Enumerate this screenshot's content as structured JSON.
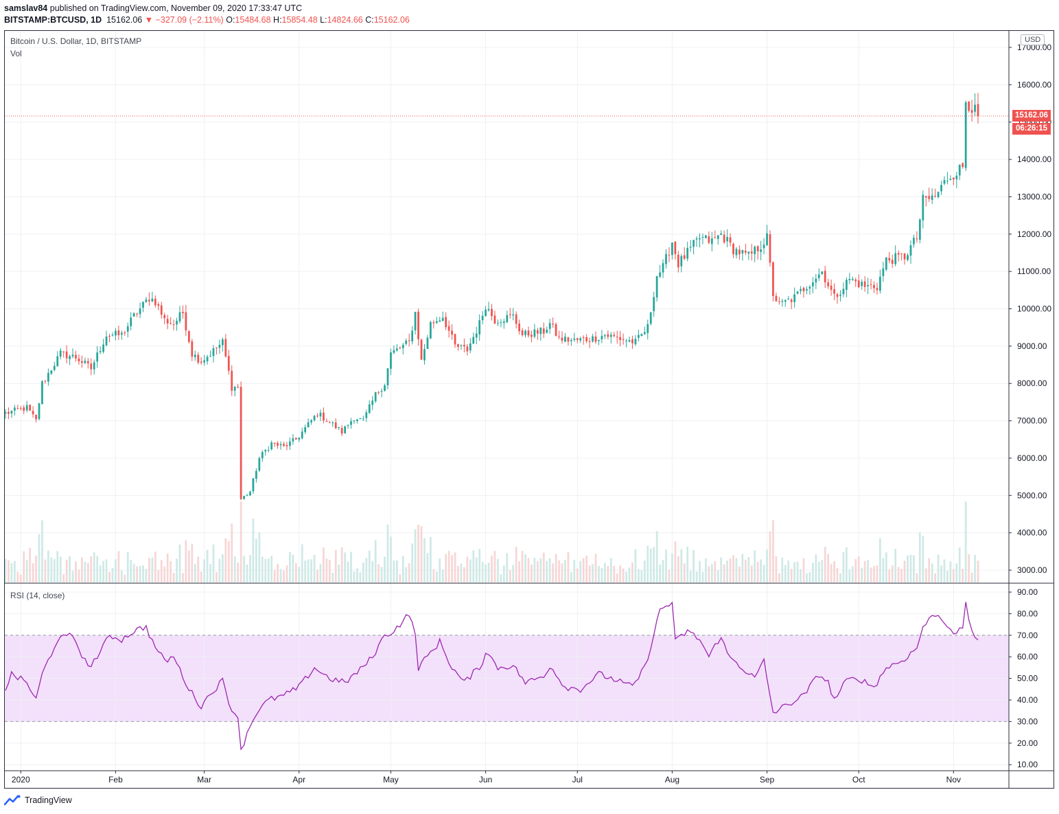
{
  "header": {
    "author": "samslav84",
    "published_text": "published on TradingView.com, November 09, 2020 17:33:47 UTC",
    "symbol": "BITSTAMP:BTCUSD, 1D",
    "last": "15162.06",
    "change": "−327.09 (−2.11%)",
    "o_label": "O:",
    "o_value": "15484.68",
    "h_label": "H:",
    "h_value": "15854.48",
    "l_label": "L:",
    "l_value": "14824.66",
    "c_label": "C:",
    "c_value": "15162.06"
  },
  "legend": {
    "main": "Bitcoin / U.S. Dollar, 1D, BITSTAMP",
    "vol": "Vol",
    "rsi": "RSI (14, close)"
  },
  "currency_button": "USD",
  "price_tag": "15162.06",
  "countdown_tag": "06:26:15",
  "footer": {
    "brand": "TradingView"
  },
  "colors": {
    "up": "#26a69a",
    "down": "#ef5350",
    "rsi_line": "#9c27b0",
    "rsi_band": "#f3e0fb",
    "grid": "#eef0f3",
    "vol_up": "#cfe9e6",
    "vol_down": "#f7d6d6"
  },
  "chart_data": [
    {
      "type": "candlestick",
      "title": "Bitcoin / U.S. Dollar, 1D, BITSTAMP",
      "interval": "1D",
      "ylim": [
        2700,
        17300
      ],
      "y_ticks": [
        "17000.00",
        "16000.00",
        "15000.00",
        "14000.00",
        "13000.00",
        "12000.00",
        "11000.00",
        "10000.00",
        "9000.00",
        "8000.00",
        "7000.00",
        "6000.00",
        "5000.00",
        "4000.00",
        "3000.00"
      ],
      "x_ticks": [
        "2020",
        "Feb",
        "Mar",
        "Apr",
        "May",
        "Jun",
        "Jul",
        "Aug",
        "Sep",
        "Oct",
        "Nov"
      ],
      "x_range": [
        "2019-12-27",
        "2020-11-09"
      ],
      "grid": true,
      "anchors": [
        [
          "2019-12-27",
          7200
        ],
        [
          "2020-01-03",
          7350
        ],
        [
          "2020-01-06",
          7000
        ],
        [
          "2020-01-08",
          8000
        ],
        [
          "2020-01-14",
          8800
        ],
        [
          "2020-01-19",
          8700
        ],
        [
          "2020-01-24",
          8400
        ],
        [
          "2020-01-29",
          9300
        ],
        [
          "2020-02-03",
          9300
        ],
        [
          "2020-02-07",
          9800
        ],
        [
          "2020-02-12",
          10300
        ],
        [
          "2020-02-14",
          10200
        ],
        [
          "2020-02-17",
          9700
        ],
        [
          "2020-02-20",
          9600
        ],
        [
          "2020-02-23",
          9900
        ],
        [
          "2020-02-26",
          8800
        ],
        [
          "2020-02-29",
          8600
        ],
        [
          "2020-03-03",
          8800
        ],
        [
          "2020-03-07",
          9100
        ],
        [
          "2020-03-10",
          7900
        ],
        [
          "2020-03-12",
          7900
        ],
        [
          "2020-03-13",
          4900
        ],
        [
          "2020-03-16",
          5100
        ],
        [
          "2020-03-19",
          6000
        ],
        [
          "2020-03-23",
          6400
        ],
        [
          "2020-03-27",
          6300
        ],
        [
          "2020-03-31",
          6500
        ],
        [
          "2020-04-03",
          6800
        ],
        [
          "2020-04-07",
          7200
        ],
        [
          "2020-04-12",
          6900
        ],
        [
          "2020-04-15",
          6700
        ],
        [
          "2020-04-19",
          7100
        ],
        [
          "2020-04-22",
          7000
        ],
        [
          "2020-04-26",
          7700
        ],
        [
          "2020-04-29",
          8000
        ],
        [
          "2020-05-01",
          8800
        ],
        [
          "2020-05-07",
          9100
        ],
        [
          "2020-05-09",
          9900
        ],
        [
          "2020-05-11",
          8600
        ],
        [
          "2020-05-14",
          9600
        ],
        [
          "2020-05-18",
          9800
        ],
        [
          "2020-05-22",
          9000
        ],
        [
          "2020-05-26",
          8900
        ],
        [
          "2020-05-30",
          9600
        ],
        [
          "2020-06-01",
          10100
        ],
        [
          "2020-06-04",
          9700
        ],
        [
          "2020-06-10",
          9800
        ],
        [
          "2020-06-13",
          9300
        ],
        [
          "2020-06-20",
          9400
        ],
        [
          "2020-06-22",
          9600
        ],
        [
          "2020-06-25",
          9200
        ],
        [
          "2020-06-30",
          9150
        ],
        [
          "2020-07-06",
          9200
        ],
        [
          "2020-07-10",
          9300
        ],
        [
          "2020-07-15",
          9200
        ],
        [
          "2020-07-20",
          9100
        ],
        [
          "2020-07-24",
          9500
        ],
        [
          "2020-07-27",
          10900
        ],
        [
          "2020-07-29",
          11100
        ],
        [
          "2020-08-01",
          11800
        ],
        [
          "2020-08-03",
          11200
        ],
        [
          "2020-08-10",
          11900
        ],
        [
          "2020-08-14",
          11800
        ],
        [
          "2020-08-17",
          12000
        ],
        [
          "2020-08-21",
          11600
        ],
        [
          "2020-08-26",
          11400
        ],
        [
          "2020-08-30",
          11700
        ],
        [
          "2020-09-01",
          11900
        ],
        [
          "2020-09-03",
          10400
        ],
        [
          "2020-09-05",
          10100
        ],
        [
          "2020-09-10",
          10300
        ],
        [
          "2020-09-15",
          10700
        ],
        [
          "2020-09-19",
          11000
        ],
        [
          "2020-09-23",
          10300
        ],
        [
          "2020-09-28",
          10800
        ],
        [
          "2020-10-03",
          10600
        ],
        [
          "2020-10-07",
          10600
        ],
        [
          "2020-10-10",
          11300
        ],
        [
          "2020-10-16",
          11400
        ],
        [
          "2020-10-20",
          11900
        ],
        [
          "2020-10-22",
          12900
        ],
        [
          "2020-10-26",
          13000
        ],
        [
          "2020-10-30",
          13500
        ],
        [
          "2020-11-04",
          13800
        ],
        [
          "2020-11-05",
          15600
        ],
        [
          "2020-11-07",
          15400
        ],
        [
          "2020-11-09",
          15162
        ]
      ],
      "last_price": 15162.06
    },
    {
      "type": "line",
      "title": "RSI (14, close)",
      "ylim": [
        10,
        90
      ],
      "y_ticks": [
        "90.00",
        "80.00",
        "70.00",
        "60.00",
        "50.00",
        "40.00",
        "30.00",
        "20.00",
        "10.00"
      ],
      "band": [
        30,
        70
      ],
      "x_range": [
        "2019-12-27",
        "2020-11-09"
      ],
      "anchors": [
        [
          "2019-12-27",
          45
        ],
        [
          "2019-12-29",
          52
        ],
        [
          "2020-01-03",
          48
        ],
        [
          "2020-01-06",
          40
        ],
        [
          "2020-01-08",
          52
        ],
        [
          "2020-01-13",
          68
        ],
        [
          "2020-01-18",
          70
        ],
        [
          "2020-01-23",
          55
        ],
        [
          "2020-01-27",
          62
        ],
        [
          "2020-01-30",
          70
        ],
        [
          "2020-02-03",
          68
        ],
        [
          "2020-02-07",
          72
        ],
        [
          "2020-02-11",
          74
        ],
        [
          "2020-02-13",
          67
        ],
        [
          "2020-02-17",
          58
        ],
        [
          "2020-02-20",
          60
        ],
        [
          "2020-02-25",
          45
        ],
        [
          "2020-02-29",
          37
        ],
        [
          "2020-03-03",
          43
        ],
        [
          "2020-03-07",
          49
        ],
        [
          "2020-03-10",
          35
        ],
        [
          "2020-03-12",
          33
        ],
        [
          "2020-03-13",
          16
        ],
        [
          "2020-03-15",
          25
        ],
        [
          "2020-03-18",
          34
        ],
        [
          "2020-03-22",
          40
        ],
        [
          "2020-03-27",
          42
        ],
        [
          "2020-04-01",
          46
        ],
        [
          "2020-04-06",
          55
        ],
        [
          "2020-04-11",
          50
        ],
        [
          "2020-04-16",
          48
        ],
        [
          "2020-04-21",
          54
        ],
        [
          "2020-04-25",
          60
        ],
        [
          "2020-04-29",
          70
        ],
        [
          "2020-05-02",
          72
        ],
        [
          "2020-05-07",
          80
        ],
        [
          "2020-05-09",
          70
        ],
        [
          "2020-05-10",
          55
        ],
        [
          "2020-05-14",
          62
        ],
        [
          "2020-05-17",
          67
        ],
        [
          "2020-05-21",
          55
        ],
        [
          "2020-05-25",
          48
        ],
        [
          "2020-05-31",
          57
        ],
        [
          "2020-06-01",
          63
        ],
        [
          "2020-06-05",
          55
        ],
        [
          "2020-06-10",
          56
        ],
        [
          "2020-06-14",
          48
        ],
        [
          "2020-06-20",
          51
        ],
        [
          "2020-06-22",
          56
        ],
        [
          "2020-06-27",
          46
        ],
        [
          "2020-07-02",
          45
        ],
        [
          "2020-07-08",
          52
        ],
        [
          "2020-07-14",
          49
        ],
        [
          "2020-07-19",
          46
        ],
        [
          "2020-07-23",
          55
        ],
        [
          "2020-07-26",
          70
        ],
        [
          "2020-07-28",
          82
        ],
        [
          "2020-08-01",
          85
        ],
        [
          "2020-08-02",
          67
        ],
        [
          "2020-08-06",
          72
        ],
        [
          "2020-08-10",
          68
        ],
        [
          "2020-08-13",
          60
        ],
        [
          "2020-08-17",
          70
        ],
        [
          "2020-08-19",
          61
        ],
        [
          "2020-08-23",
          56
        ],
        [
          "2020-08-28",
          50
        ],
        [
          "2020-08-31",
          58
        ],
        [
          "2020-09-03",
          34
        ],
        [
          "2020-09-08",
          38
        ],
        [
          "2020-09-13",
          42
        ],
        [
          "2020-09-18",
          52
        ],
        [
          "2020-09-21",
          48
        ],
        [
          "2020-09-23",
          40
        ],
        [
          "2020-09-27",
          49
        ],
        [
          "2020-10-01",
          50
        ],
        [
          "2020-10-06",
          46
        ],
        [
          "2020-10-10",
          55
        ],
        [
          "2020-10-15",
          58
        ],
        [
          "2020-10-20",
          64
        ],
        [
          "2020-10-22",
          74
        ],
        [
          "2020-10-26",
          80
        ],
        [
          "2020-10-30",
          75
        ],
        [
          "2020-11-02",
          70
        ],
        [
          "2020-11-04",
          74
        ],
        [
          "2020-11-05",
          84
        ],
        [
          "2020-11-07",
          72
        ],
        [
          "2020-11-09",
          68
        ]
      ]
    }
  ]
}
